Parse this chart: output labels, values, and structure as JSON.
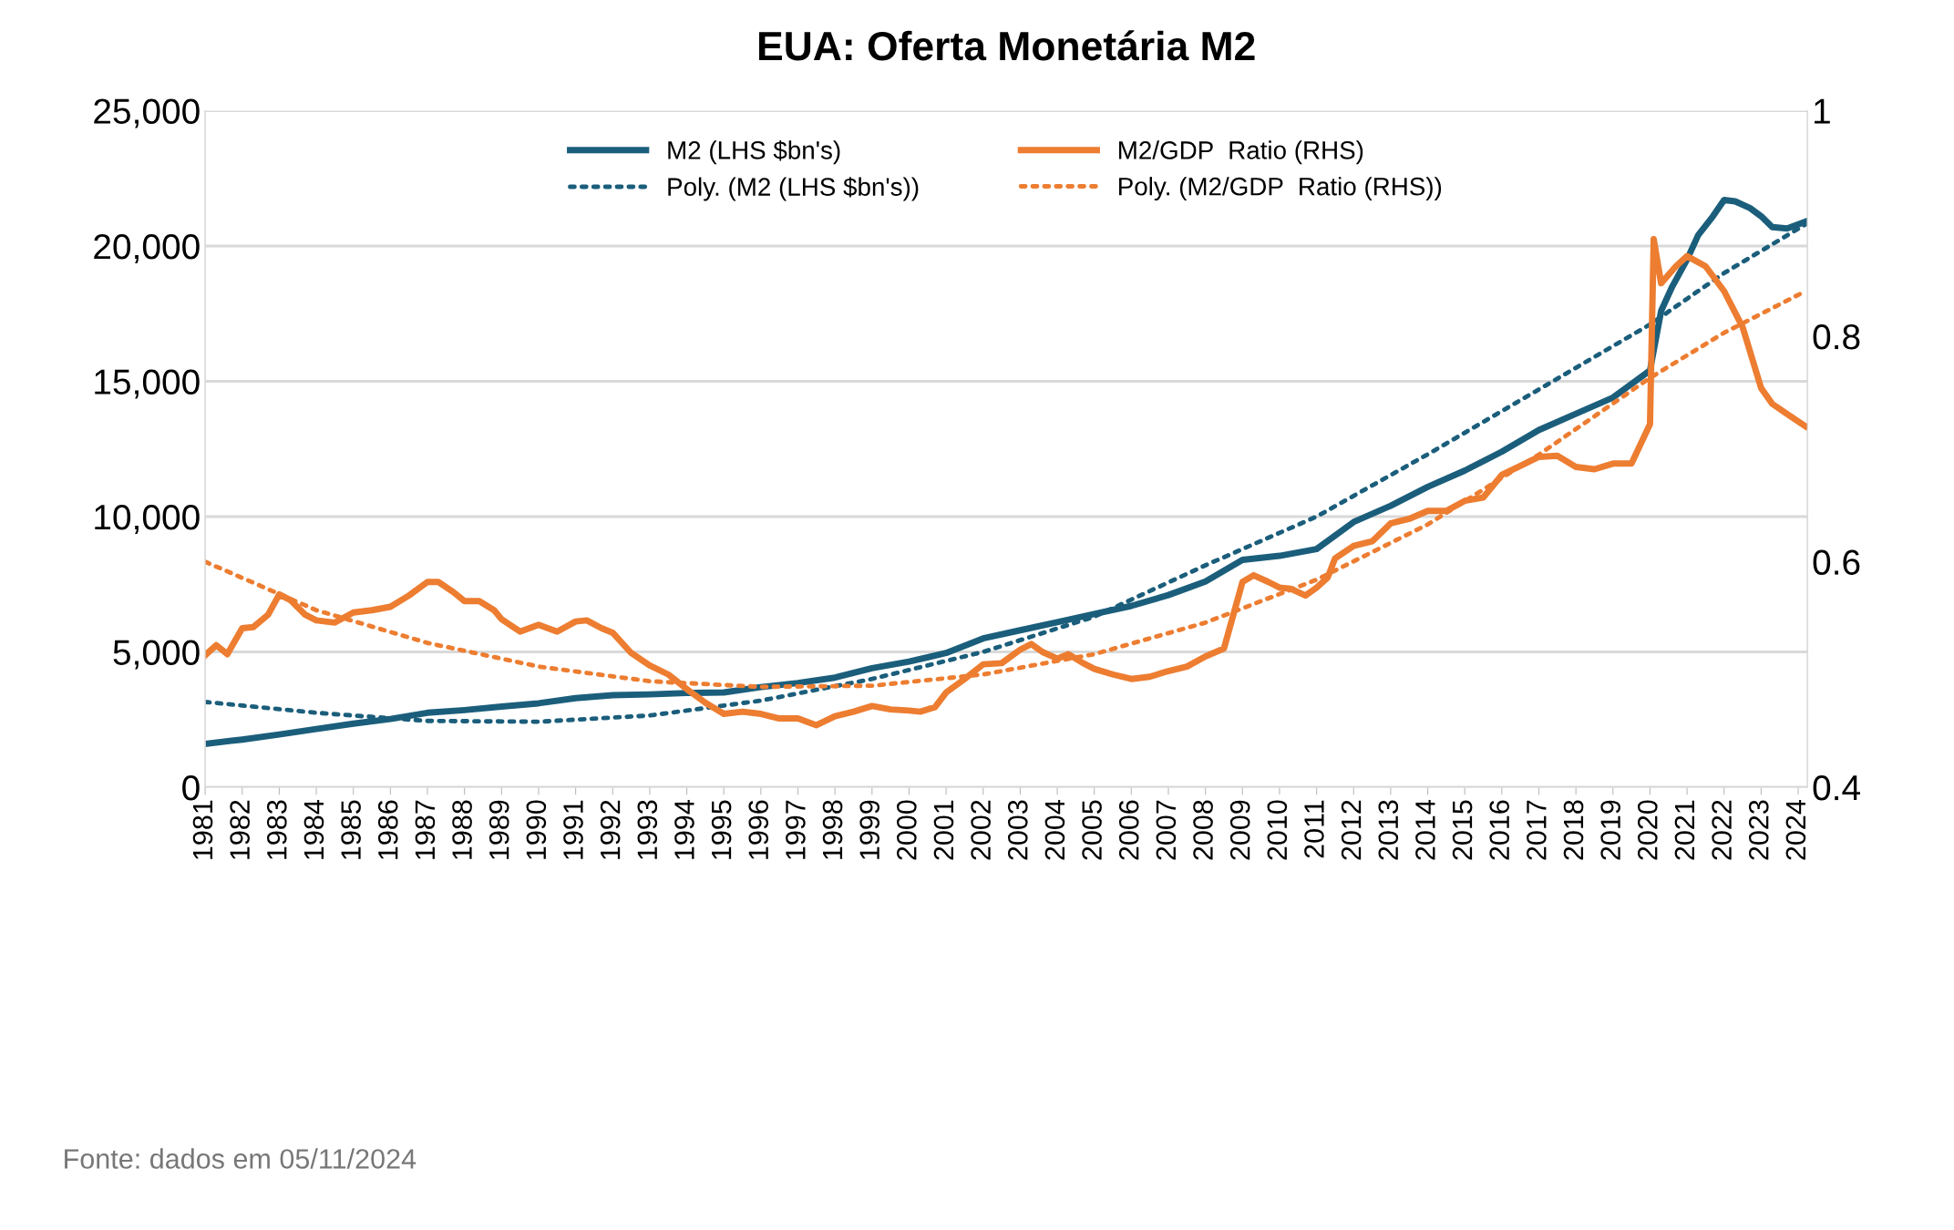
{
  "chart_data": {
    "type": "line",
    "title": "EUA: Oferta Monetária M2",
    "xlim": [
      1981,
      2024.25
    ],
    "xticks": [
      1981,
      1982,
      1983,
      1984,
      1985,
      1986,
      1987,
      1988,
      1989,
      1990,
      1991,
      1992,
      1993,
      1994,
      1995,
      1996,
      1997,
      1998,
      1999,
      2000,
      2001,
      2002,
      2003,
      2004,
      2005,
      2006,
      2007,
      2008,
      2009,
      2010,
      2011,
      2012,
      2013,
      2014,
      2015,
      2016,
      2017,
      2018,
      2019,
      2020,
      2021,
      2022,
      2023,
      2024
    ],
    "ylim": [
      0,
      25000
    ],
    "yticks": [
      {
        "value": 0,
        "label": "0"
      },
      {
        "value": 5000,
        "label": "5,000"
      },
      {
        "value": 10000,
        "label": "10,000"
      },
      {
        "value": 15000,
        "label": "15,000"
      },
      {
        "value": 20000,
        "label": "20,000"
      },
      {
        "value": 25000,
        "label": "25,000"
      }
    ],
    "y2lim": [
      0.4,
      1
    ],
    "y2ticks": [
      0.4,
      0.6,
      0.8,
      1
    ],
    "grid": "y",
    "legend": "top",
    "series": [
      {
        "name": "M2 (LHS $bn's)",
        "color": "#1b5e7b",
        "line_style": "solid",
        "x": [
          1981,
          1982,
          1983,
          1984,
          1985,
          1986,
          1987,
          1988,
          1989,
          1990,
          1991,
          1992,
          1993,
          1994,
          1995,
          1996,
          1997,
          1998,
          1999,
          2000,
          2001,
          2002,
          2003,
          2004,
          2005,
          2006,
          2007,
          2008,
          2009,
          2010,
          2011,
          2012,
          2013,
          2014,
          2015,
          2016,
          2017,
          2018,
          2019,
          2020,
          2020.3,
          2020.6,
          2021,
          2021.3,
          2021.7,
          2022,
          2022.3,
          2022.7,
          2023,
          2023.3,
          2023.7,
          2024.2
        ],
        "values": [
          1600,
          1760,
          1950,
          2150,
          2350,
          2520,
          2750,
          2850,
          2980,
          3100,
          3290,
          3400,
          3430,
          3480,
          3500,
          3700,
          3850,
          4050,
          4400,
          4640,
          4960,
          5500,
          5800,
          6100,
          6400,
          6700,
          7100,
          7600,
          8400,
          8550,
          8800,
          9800,
          10400,
          11100,
          11700,
          12400,
          13200,
          13800,
          14400,
          15400,
          17600,
          18500,
          19500,
          20400,
          21100,
          21700,
          21650,
          21400,
          21100,
          20700,
          20650,
          20900
        ]
      },
      {
        "name": "Poly. (M2 (LHS $bn's))",
        "color": "#1b5e7b",
        "line_style": "dotted",
        "x": [
          1981,
          1984,
          1987,
          1990,
          1993,
          1996,
          1999,
          2002,
          2005,
          2008,
          2011,
          2014,
          2017,
          2020,
          2022,
          2024.2
        ],
        "values": [
          3150,
          2750,
          2450,
          2420,
          2650,
          3200,
          4000,
          5000,
          6300,
          8200,
          10000,
          12300,
          14700,
          17100,
          19000,
          20800
        ]
      },
      {
        "name": "M2/GDP  Ratio (RHS)",
        "color": "#ed7d31",
        "line_style": "solid",
        "axis": "y2",
        "x": [
          1981,
          1981.3,
          1981.6,
          1982,
          1982.3,
          1982.7,
          1983,
          1983.3,
          1983.7,
          1984,
          1984.5,
          1985,
          1985.5,
          1986,
          1986.5,
          1987,
          1987.3,
          1987.7,
          1988,
          1988.4,
          1988.8,
          1989,
          1989.5,
          1990,
          1990.5,
          1991,
          1991.3,
          1991.7,
          1992,
          1992.5,
          1993,
          1993.5,
          1994,
          1994.5,
          1995,
          1995.5,
          1996,
          1996.5,
          1997,
          1997.5,
          1998,
          1998.5,
          1999,
          1999.5,
          2000,
          2000.3,
          2000.7,
          2001,
          2001.5,
          2002,
          2002.5,
          2003,
          2003.3,
          2003.6,
          2004,
          2004.3,
          2004.7,
          2005,
          2005.5,
          2006,
          2006.5,
          2007,
          2007.5,
          2008,
          2008.5,
          2009,
          2009.3,
          2009.7,
          2010,
          2010.3,
          2010.7,
          2011,
          2011.3,
          2011.5,
          2012,
          2012.5,
          2013,
          2013.5,
          2014,
          2014.5,
          2015,
          2015.5,
          2016,
          2016.5,
          2017,
          2017.5,
          2018,
          2018.5,
          2019,
          2019.5,
          2020,
          2020.1,
          2020.3,
          2020.7,
          2021,
          2021.5,
          2022,
          2022.5,
          2023,
          2023.3,
          2023.7,
          2024.2
        ],
        "values": [
          0.517,
          0.526,
          0.518,
          0.541,
          0.542,
          0.553,
          0.571,
          0.566,
          0.553,
          0.548,
          0.546,
          0.555,
          0.557,
          0.56,
          0.57,
          0.582,
          0.582,
          0.573,
          0.565,
          0.565,
          0.557,
          0.549,
          0.538,
          0.544,
          0.538,
          0.547,
          0.548,
          0.541,
          0.537,
          0.519,
          0.508,
          0.5,
          0.487,
          0.475,
          0.465,
          0.467,
          0.465,
          0.461,
          0.461,
          0.455,
          0.463,
          0.467,
          0.472,
          0.469,
          0.468,
          0.467,
          0.471,
          0.484,
          0.496,
          0.509,
          0.51,
          0.522,
          0.527,
          0.52,
          0.514,
          0.518,
          0.51,
          0.505,
          0.5,
          0.496,
          0.498,
          0.503,
          0.507,
          0.516,
          0.523,
          0.582,
          0.588,
          0.582,
          0.577,
          0.576,
          0.57,
          0.577,
          0.586,
          0.603,
          0.614,
          0.618,
          0.634,
          0.638,
          0.645,
          0.645,
          0.654,
          0.657,
          0.677,
          0.685,
          0.693,
          0.694,
          0.684,
          0.682,
          0.687,
          0.687,
          0.722,
          0.886,
          0.847,
          0.862,
          0.871,
          0.862,
          0.84,
          0.808,
          0.754,
          0.74,
          0.731,
          0.72
        ]
      },
      {
        "name": "Poly. (M2/GDP  Ratio (RHS))",
        "color": "#ed7d31",
        "line_style": "dotted",
        "axis": "y2",
        "x": [
          1981,
          1984,
          1987,
          1990,
          1993,
          1996,
          1999,
          2002,
          2005,
          2008,
          2011,
          2014,
          2017,
          2020,
          2022,
          2024.2
        ],
        "values": [
          0.6,
          0.557,
          0.528,
          0.507,
          0.494,
          0.489,
          0.49,
          0.5,
          0.518,
          0.546,
          0.584,
          0.633,
          0.695,
          0.763,
          0.803,
          0.84
        ]
      }
    ],
    "annotations": [
      "Fonte: dados em 05/11/2024"
    ]
  }
}
